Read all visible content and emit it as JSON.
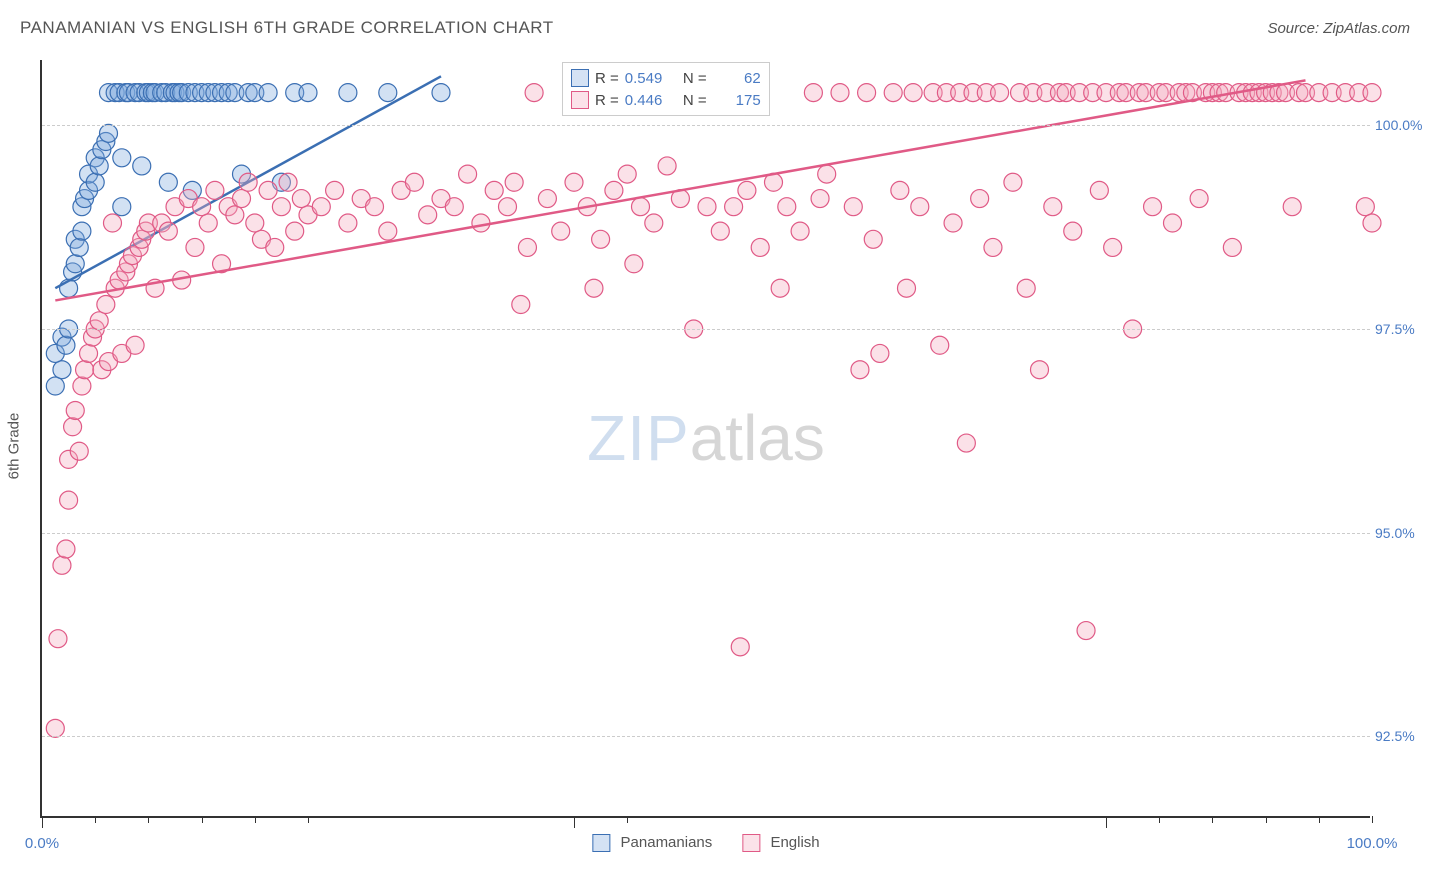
{
  "title": "PANAMANIAN VS ENGLISH 6TH GRADE CORRELATION CHART",
  "source": "Source: ZipAtlas.com",
  "y_axis_title": "6th Grade",
  "watermark": {
    "part1": "ZIP",
    "part2": "atlas"
  },
  "chart": {
    "type": "scatter",
    "background_color": "#ffffff",
    "grid_color": "#cccccc",
    "axis_color": "#333333",
    "tick_label_color": "#4a7bc4",
    "label_fontsize": 15,
    "xlim": [
      0,
      100
    ],
    "ylim": [
      91.5,
      100.8
    ],
    "x_ticks_major": [
      0,
      40,
      80
    ],
    "x_ticks_minor": [
      4,
      8,
      12,
      16,
      20,
      44,
      84,
      88,
      92,
      96,
      100
    ],
    "x_tick_labels": [
      {
        "x": 0,
        "label": "0.0%"
      },
      {
        "x": 100,
        "label": "100.0%"
      }
    ],
    "y_ticks": [
      92.5,
      95.0,
      97.5,
      100.0
    ],
    "y_tick_labels": [
      "92.5%",
      "95.0%",
      "97.5%",
      "100.0%"
    ],
    "marker_radius": 9,
    "marker_fill_opacity": 0.35,
    "marker_stroke_width": 1.2,
    "series": [
      {
        "name": "Panamanians",
        "color_fill": "#7fa9dd",
        "color_stroke": "#3b6fb3",
        "R": "0.549",
        "N": "62",
        "trend_line": {
          "x1": 1,
          "y1": 98.0,
          "x2": 30,
          "y2": 100.6
        },
        "points": [
          [
            1,
            96.8
          ],
          [
            1,
            97.2
          ],
          [
            1.5,
            97.0
          ],
          [
            1.5,
            97.4
          ],
          [
            1.8,
            97.3
          ],
          [
            2,
            97.5
          ],
          [
            2,
            98.0
          ],
          [
            2.3,
            98.2
          ],
          [
            2.5,
            98.3
          ],
          [
            2.5,
            98.6
          ],
          [
            2.8,
            98.5
          ],
          [
            3,
            98.7
          ],
          [
            3,
            99.0
          ],
          [
            3.2,
            99.1
          ],
          [
            3.5,
            99.2
          ],
          [
            3.5,
            99.4
          ],
          [
            4,
            99.3
          ],
          [
            4,
            99.6
          ],
          [
            4.3,
            99.5
          ],
          [
            4.5,
            99.7
          ],
          [
            4.8,
            99.8
          ],
          [
            5,
            99.9
          ],
          [
            5,
            100.4
          ],
          [
            5.5,
            100.4
          ],
          [
            5.8,
            100.4
          ],
          [
            6,
            99.0
          ],
          [
            6,
            99.6
          ],
          [
            6.3,
            100.4
          ],
          [
            6.5,
            100.4
          ],
          [
            7,
            100.4
          ],
          [
            7.3,
            100.4
          ],
          [
            7.5,
            99.5
          ],
          [
            7.8,
            100.4
          ],
          [
            8,
            100.4
          ],
          [
            8.3,
            100.4
          ],
          [
            8.5,
            100.4
          ],
          [
            9,
            100.4
          ],
          [
            9.3,
            100.4
          ],
          [
            9.5,
            99.3
          ],
          [
            9.8,
            100.4
          ],
          [
            10,
            100.4
          ],
          [
            10.3,
            100.4
          ],
          [
            10.5,
            100.4
          ],
          [
            11,
            100.4
          ],
          [
            11.3,
            99.2
          ],
          [
            11.5,
            100.4
          ],
          [
            12,
            100.4
          ],
          [
            12.5,
            100.4
          ],
          [
            13,
            100.4
          ],
          [
            13.5,
            100.4
          ],
          [
            14,
            100.4
          ],
          [
            14.5,
            100.4
          ],
          [
            15,
            99.4
          ],
          [
            15.5,
            100.4
          ],
          [
            16,
            100.4
          ],
          [
            17,
            100.4
          ],
          [
            18,
            99.3
          ],
          [
            19,
            100.4
          ],
          [
            20,
            100.4
          ],
          [
            23,
            100.4
          ],
          [
            26,
            100.4
          ],
          [
            30,
            100.4
          ]
        ]
      },
      {
        "name": "English",
        "color_fill": "#f4a8bd",
        "color_stroke": "#e05a86",
        "R": "0.446",
        "N": "175",
        "trend_line": {
          "x1": 1,
          "y1": 97.85,
          "x2": 95,
          "y2": 100.55
        },
        "points": [
          [
            1,
            92.6
          ],
          [
            1.2,
            93.7
          ],
          [
            1.5,
            94.6
          ],
          [
            1.8,
            94.8
          ],
          [
            2,
            95.4
          ],
          [
            2,
            95.9
          ],
          [
            2.3,
            96.3
          ],
          [
            2.5,
            96.5
          ],
          [
            2.8,
            96.0
          ],
          [
            3,
            96.8
          ],
          [
            3.2,
            97.0
          ],
          [
            3.5,
            97.2
          ],
          [
            3.8,
            97.4
          ],
          [
            4,
            97.5
          ],
          [
            4.3,
            97.6
          ],
          [
            4.5,
            97.0
          ],
          [
            4.8,
            97.8
          ],
          [
            5,
            97.1
          ],
          [
            5.3,
            98.8
          ],
          [
            5.5,
            98.0
          ],
          [
            5.8,
            98.1
          ],
          [
            6,
            97.2
          ],
          [
            6.3,
            98.2
          ],
          [
            6.5,
            98.3
          ],
          [
            6.8,
            98.4
          ],
          [
            7,
            97.3
          ],
          [
            7.3,
            98.5
          ],
          [
            7.5,
            98.6
          ],
          [
            7.8,
            98.7
          ],
          [
            8,
            98.8
          ],
          [
            8.5,
            98.0
          ],
          [
            9,
            98.8
          ],
          [
            9.5,
            98.7
          ],
          [
            10,
            99.0
          ],
          [
            10.5,
            98.1
          ],
          [
            11,
            99.1
          ],
          [
            11.5,
            98.5
          ],
          [
            12,
            99.0
          ],
          [
            12.5,
            98.8
          ],
          [
            13,
            99.2
          ],
          [
            13.5,
            98.3
          ],
          [
            14,
            99.0
          ],
          [
            14.5,
            98.9
          ],
          [
            15,
            99.1
          ],
          [
            15.5,
            99.3
          ],
          [
            16,
            98.8
          ],
          [
            16.5,
            98.6
          ],
          [
            17,
            99.2
          ],
          [
            17.5,
            98.5
          ],
          [
            18,
            99.0
          ],
          [
            18.5,
            99.3
          ],
          [
            19,
            98.7
          ],
          [
            19.5,
            99.1
          ],
          [
            20,
            98.9
          ],
          [
            21,
            99.0
          ],
          [
            22,
            99.2
          ],
          [
            23,
            98.8
          ],
          [
            24,
            99.1
          ],
          [
            25,
            99.0
          ],
          [
            26,
            98.7
          ],
          [
            27,
            99.2
          ],
          [
            28,
            99.3
          ],
          [
            29,
            98.9
          ],
          [
            30,
            99.1
          ],
          [
            31,
            99.0
          ],
          [
            32,
            99.4
          ],
          [
            33,
            98.8
          ],
          [
            34,
            99.2
          ],
          [
            35,
            99.0
          ],
          [
            35.5,
            99.3
          ],
          [
            36,
            97.8
          ],
          [
            36.5,
            98.5
          ],
          [
            37,
            100.4
          ],
          [
            38,
            99.1
          ],
          [
            39,
            98.7
          ],
          [
            40,
            99.3
          ],
          [
            41,
            99.0
          ],
          [
            41.5,
            98.0
          ],
          [
            42,
            98.6
          ],
          [
            43,
            99.2
          ],
          [
            44,
            99.4
          ],
          [
            44.5,
            98.3
          ],
          [
            45,
            99.0
          ],
          [
            46,
            98.8
          ],
          [
            47,
            99.5
          ],
          [
            48,
            99.1
          ],
          [
            49,
            97.5
          ],
          [
            50,
            99.0
          ],
          [
            51,
            98.7
          ],
          [
            52,
            99.0
          ],
          [
            52.5,
            93.6
          ],
          [
            53,
            99.2
          ],
          [
            54,
            98.5
          ],
          [
            55,
            99.3
          ],
          [
            55.5,
            98.0
          ],
          [
            56,
            99.0
          ],
          [
            57,
            98.7
          ],
          [
            58,
            100.4
          ],
          [
            58.5,
            99.1
          ],
          [
            59,
            99.4
          ],
          [
            60,
            100.4
          ],
          [
            61,
            99.0
          ],
          [
            61.5,
            97.0
          ],
          [
            62,
            100.4
          ],
          [
            62.5,
            98.6
          ],
          [
            63,
            97.2
          ],
          [
            64,
            100.4
          ],
          [
            64.5,
            99.2
          ],
          [
            65,
            98.0
          ],
          [
            65.5,
            100.4
          ],
          [
            66,
            99.0
          ],
          [
            67,
            100.4
          ],
          [
            67.5,
            97.3
          ],
          [
            68,
            100.4
          ],
          [
            68.5,
            98.8
          ],
          [
            69,
            100.4
          ],
          [
            69.5,
            96.1
          ],
          [
            70,
            100.4
          ],
          [
            70.5,
            99.1
          ],
          [
            71,
            100.4
          ],
          [
            71.5,
            98.5
          ],
          [
            72,
            100.4
          ],
          [
            73,
            99.3
          ],
          [
            73.5,
            100.4
          ],
          [
            74,
            98.0
          ],
          [
            74.5,
            100.4
          ],
          [
            75,
            97.0
          ],
          [
            75.5,
            100.4
          ],
          [
            76,
            99.0
          ],
          [
            76.5,
            100.4
          ],
          [
            77,
            100.4
          ],
          [
            77.5,
            98.7
          ],
          [
            78,
            100.4
          ],
          [
            78.5,
            93.8
          ],
          [
            79,
            100.4
          ],
          [
            79.5,
            99.2
          ],
          [
            80,
            100.4
          ],
          [
            80.5,
            98.5
          ],
          [
            81,
            100.4
          ],
          [
            81.5,
            100.4
          ],
          [
            82,
            97.5
          ],
          [
            82.5,
            100.4
          ],
          [
            83,
            100.4
          ],
          [
            83.5,
            99.0
          ],
          [
            84,
            100.4
          ],
          [
            84.5,
            100.4
          ],
          [
            85,
            98.8
          ],
          [
            85.5,
            100.4
          ],
          [
            86,
            100.4
          ],
          [
            86.5,
            100.4
          ],
          [
            87,
            99.1
          ],
          [
            87.5,
            100.4
          ],
          [
            88,
            100.4
          ],
          [
            88.5,
            100.4
          ],
          [
            89,
            100.4
          ],
          [
            89.5,
            98.5
          ],
          [
            90,
            100.4
          ],
          [
            90.5,
            100.4
          ],
          [
            91,
            100.4
          ],
          [
            91.5,
            100.4
          ],
          [
            92,
            100.4
          ],
          [
            92.5,
            100.4
          ],
          [
            93,
            100.4
          ],
          [
            93.5,
            100.4
          ],
          [
            94,
            99.0
          ],
          [
            94.5,
            100.4
          ],
          [
            95,
            100.4
          ],
          [
            96,
            100.4
          ],
          [
            97,
            100.4
          ],
          [
            98,
            100.4
          ],
          [
            99,
            100.4
          ],
          [
            99.5,
            99.0
          ],
          [
            100,
            98.8
          ],
          [
            100,
            100.4
          ]
        ]
      }
    ]
  },
  "legend_box": {
    "rows": [
      {
        "r_label": "R =",
        "n_label": "N ="
      }
    ]
  },
  "bottom_legend": {
    "items": [
      "Panamanians",
      "English"
    ]
  }
}
